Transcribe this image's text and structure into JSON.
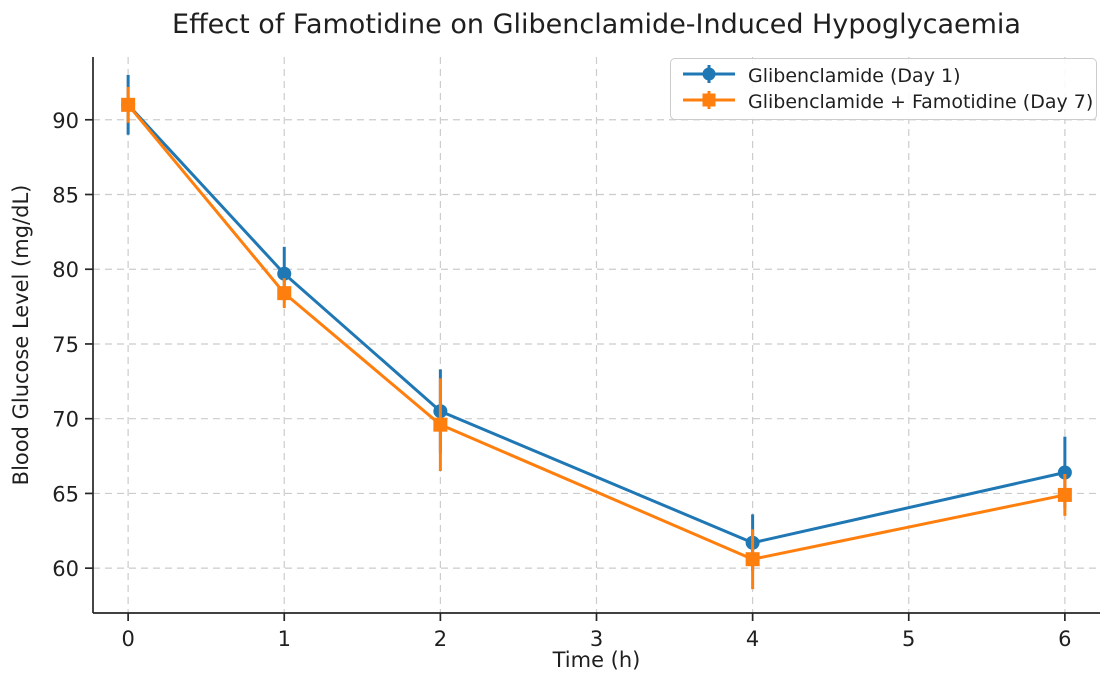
{
  "chart_data": {
    "type": "line",
    "title": "Effect of Famotidine on Glibenclamide-Induced Hypoglycaemia",
    "xlabel": "Time (h)",
    "ylabel": "Blood Glucose Level (mg/dL)",
    "x": [
      0,
      1,
      2,
      4,
      6
    ],
    "series": [
      {
        "name": "Glibenclamide (Day 1)",
        "color": "#1f77b4",
        "marker": "circle",
        "values": [
          91.0,
          79.7,
          70.5,
          61.7,
          66.4
        ],
        "yerr": [
          2.0,
          1.8,
          2.8,
          1.9,
          2.4
        ]
      },
      {
        "name": "Glibenclamide + Famotidine (Day 7)",
        "color": "#ff7f0e",
        "marker": "square",
        "values": [
          91.0,
          78.4,
          69.6,
          60.6,
          64.9
        ],
        "yerr": [
          1.2,
          1.0,
          3.1,
          2.0,
          1.4
        ]
      }
    ],
    "xticks": [
      0,
      1,
      2,
      3,
      4,
      5,
      6
    ],
    "yticks": [
      60,
      65,
      70,
      75,
      80,
      85,
      90
    ],
    "xlim": [
      -0.225,
      6.225
    ],
    "ylim": [
      57.0,
      94.2
    ],
    "grid": true,
    "grid_style": "dashed",
    "grid_color": "#cccccc",
    "legend_position": "upper right",
    "background": "#ffffff",
    "text_color": "#1f1f1f",
    "spine_color": "#262626"
  }
}
